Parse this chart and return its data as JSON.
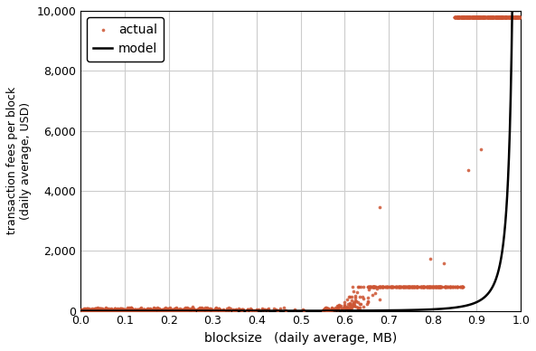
{
  "xlabel": "blocksize   (daily average, MB)",
  "ylabel": "transaction fees per block\n(daily average, USD)",
  "xlim": [
    0,
    1.0
  ],
  "ylim": [
    0,
    10000
  ],
  "xticks": [
    0,
    0.1,
    0.2,
    0.3,
    0.4,
    0.5,
    0.6,
    0.7,
    0.8,
    0.9,
    1.0
  ],
  "yticks": [
    0,
    2000,
    4000,
    6000,
    8000,
    10000
  ],
  "scatter_color": "#cd5533",
  "scatter_alpha": 0.85,
  "scatter_size": 7,
  "model_color": "#000000",
  "model_linewidth": 1.8,
  "background_color": "#ffffff",
  "grid_color": "#cccccc",
  "model_A": 0.5,
  "model_n": 12.0,
  "model_cap": 1.0
}
